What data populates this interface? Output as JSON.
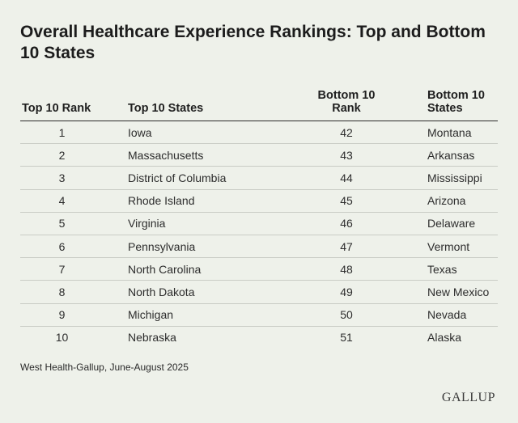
{
  "chart_data": {
    "type": "table",
    "title": "Overall Healthcare Experience Rankings: Top and Bottom 10 States",
    "columns": [
      "Top 10 Rank",
      "Top 10 States",
      "Bottom 10 Rank",
      "Bottom 10 States"
    ],
    "rows": [
      [
        "1",
        "Iowa",
        "42",
        "Montana"
      ],
      [
        "2",
        "Massachusetts",
        "43",
        "Arkansas"
      ],
      [
        "3",
        "District of Columbia",
        "44",
        "Mississippi"
      ],
      [
        "4",
        "Rhode Island",
        "45",
        "Arizona"
      ],
      [
        "5",
        "Virginia",
        "46",
        "Delaware"
      ],
      [
        "6",
        "Pennsylvania",
        "47",
        "Vermont"
      ],
      [
        "7",
        "North Carolina",
        "48",
        "Texas"
      ],
      [
        "8",
        "North Dakota",
        "49",
        "New Mexico"
      ],
      [
        "9",
        "Michigan",
        "50",
        "Nevada"
      ],
      [
        "10",
        "Nebraska",
        "51",
        "Alaska"
      ]
    ],
    "source": "West Health-Gallup, June-August 2025"
  },
  "logo": {
    "text": "GALLUP"
  }
}
